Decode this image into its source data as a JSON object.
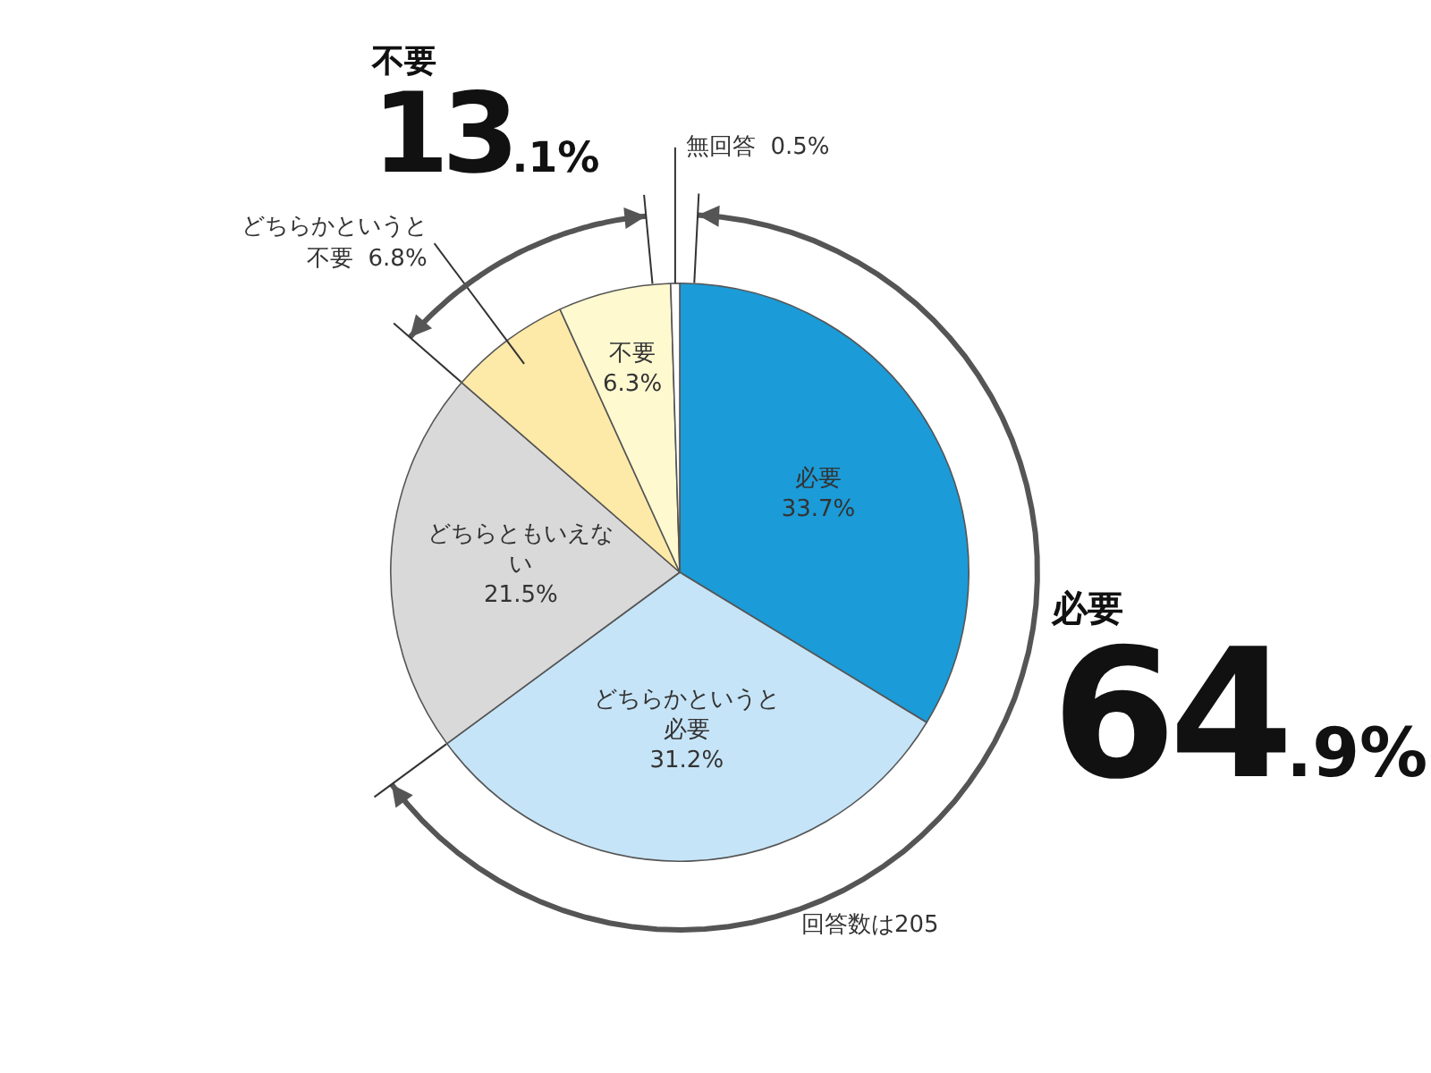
{
  "chart_data": {
    "type": "pie",
    "categories": [
      "必要",
      "どちらかというと必要",
      "どちらともいえない",
      "どちらかというと不要",
      "不要",
      "無回答"
    ],
    "values": [
      33.7,
      31.2,
      21.5,
      6.8,
      6.3,
      0.5
    ],
    "value_labels": [
      "33.7%",
      "31.2%",
      "21.5%",
      "6.8%",
      "6.3%",
      "0.5%"
    ],
    "colors": [
      "#1b9bd7",
      "#c6e4f7",
      "#d9d9d9",
      "#fde9a8",
      "#fff9d0",
      "#ffffff"
    ],
    "annotations": [
      "不要",
      "13.1%",
      "必要",
      "64.9%",
      "回答数は205"
    ]
  }
}
